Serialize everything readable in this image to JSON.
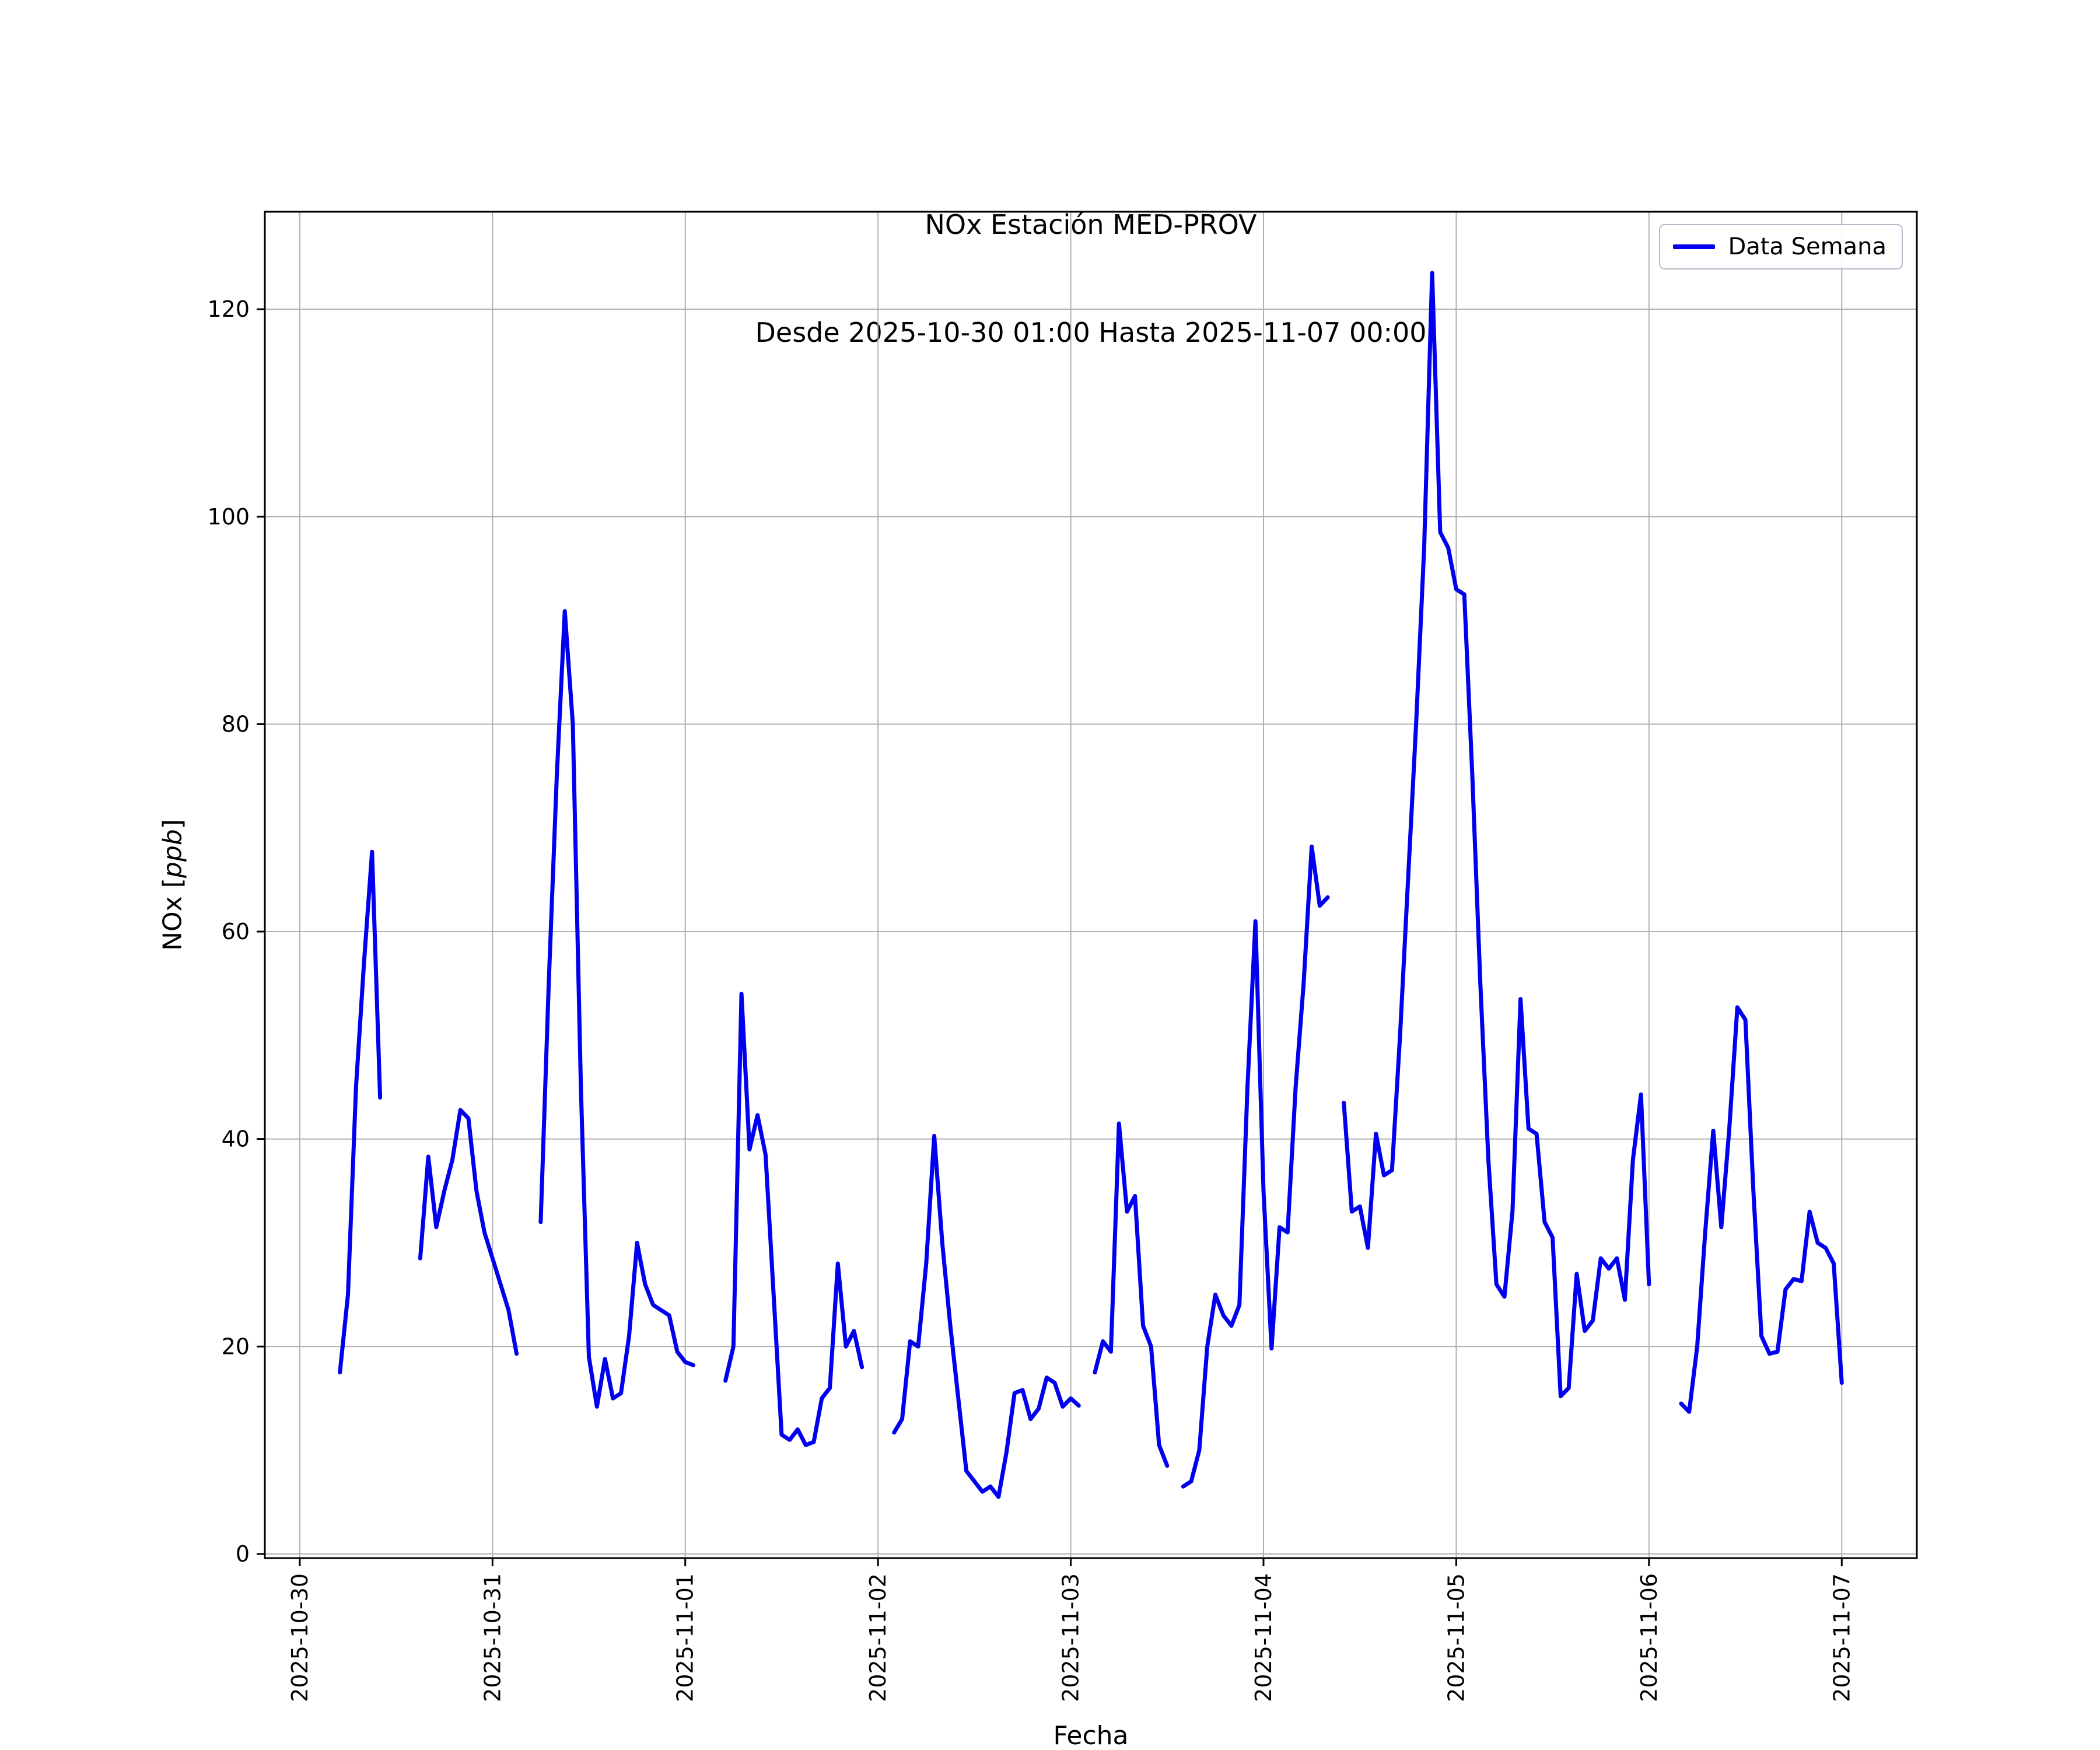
{
  "title": {
    "line1": "NOx Estación MED-PROV",
    "line2": "Desde 2025-10-30 01:00 Hasta 2025-11-07 00:00"
  },
  "axes": {
    "xlabel": "Fecha",
    "ylabel_parts": [
      "NOx [",
      "ppb",
      "]"
    ]
  },
  "legend": {
    "label": "Data Semana"
  },
  "chart_data": {
    "type": "line",
    "title": "NOx Estación MED-PROV",
    "subtitle": "Desde 2025-10-30 01:00 Hasta 2025-11-07 00:00",
    "xlabel": "Fecha",
    "ylabel": "NOx [ppb]",
    "legend_entries": [
      "Data Semana"
    ],
    "legend_position": "upper right",
    "grid": true,
    "grid_color": "#b0b0b0",
    "line_color": "#0000ee",
    "text_color": "#000000",
    "x_unit": "hours since 2025-10-30 00:00",
    "x_start": "2025-10-30 01:00",
    "x_step_hours": 1,
    "xlim_hours": [
      -4.35,
      201.35
    ],
    "ylim": [
      -0.4,
      129.4
    ],
    "yticks": [
      0,
      20,
      40,
      60,
      80,
      100,
      120
    ],
    "xticks_hours": [
      0,
      24,
      48,
      72,
      96,
      120,
      144,
      168,
      192
    ],
    "xtick_labels": [
      "2025-10-30",
      "2025-10-31",
      "2025-11-01",
      "2025-11-02",
      "2025-11-03",
      "2025-11-04",
      "2025-11-05",
      "2025-11-06",
      "2025-11-07"
    ],
    "series": [
      {
        "name": "Data Semana",
        "values": [
          null,
          null,
          null,
          null,
          17.5,
          25,
          45,
          57,
          67.7,
          44,
          null,
          null,
          null,
          null,
          28.5,
          38.3,
          31.5,
          35,
          38,
          42.8,
          42,
          35,
          31,
          28.5,
          26,
          23.5,
          19.3,
          null,
          null,
          32,
          55,
          75,
          90.9,
          80,
          45,
          19,
          14.2,
          18.8,
          15,
          15.5,
          21,
          30,
          26,
          24,
          23.5,
          23,
          19.5,
          18.5,
          18.2,
          null,
          null,
          null,
          16.7,
          20,
          54,
          39,
          42.3,
          38.5,
          25,
          11.5,
          11,
          12,
          10.5,
          10.8,
          15,
          16,
          28,
          20,
          21.5,
          18,
          null,
          null,
          null,
          11.7,
          13,
          20.5,
          20,
          28,
          40.3,
          30,
          22,
          15,
          8,
          7,
          6,
          6.5,
          5.5,
          9.8,
          15.5,
          15.8,
          13,
          14,
          17,
          16.5,
          14.2,
          15,
          14.3,
          null,
          17.5,
          20.5,
          19.5,
          41.5,
          33,
          34.5,
          22,
          20,
          10.5,
          8.5,
          null,
          6.5,
          7,
          10,
          20,
          25,
          23,
          22,
          24,
          45,
          61,
          35,
          19.8,
          31.5,
          31,
          45,
          55,
          68.2,
          62.5,
          63.3,
          null,
          43.5,
          33,
          33.5,
          29.5,
          40.5,
          36.5,
          37,
          50,
          65,
          80,
          97,
          123.5,
          98.5,
          97,
          93,
          92.5,
          75,
          55,
          38,
          26,
          24.8,
          33,
          53.5,
          41,
          40.5,
          32,
          30.5,
          15.2,
          16,
          27,
          21.5,
          22.5,
          28.5,
          27.5,
          28.5,
          24.5,
          38,
          44.3,
          26,
          null,
          null,
          null,
          14.5,
          13.7,
          20,
          31,
          40.8,
          31.5,
          41,
          52.7,
          51.5,
          35,
          21,
          19.3,
          19.5,
          25.5,
          26.5,
          26.3,
          33,
          30,
          29.5,
          28,
          16.5
        ]
      }
    ]
  }
}
